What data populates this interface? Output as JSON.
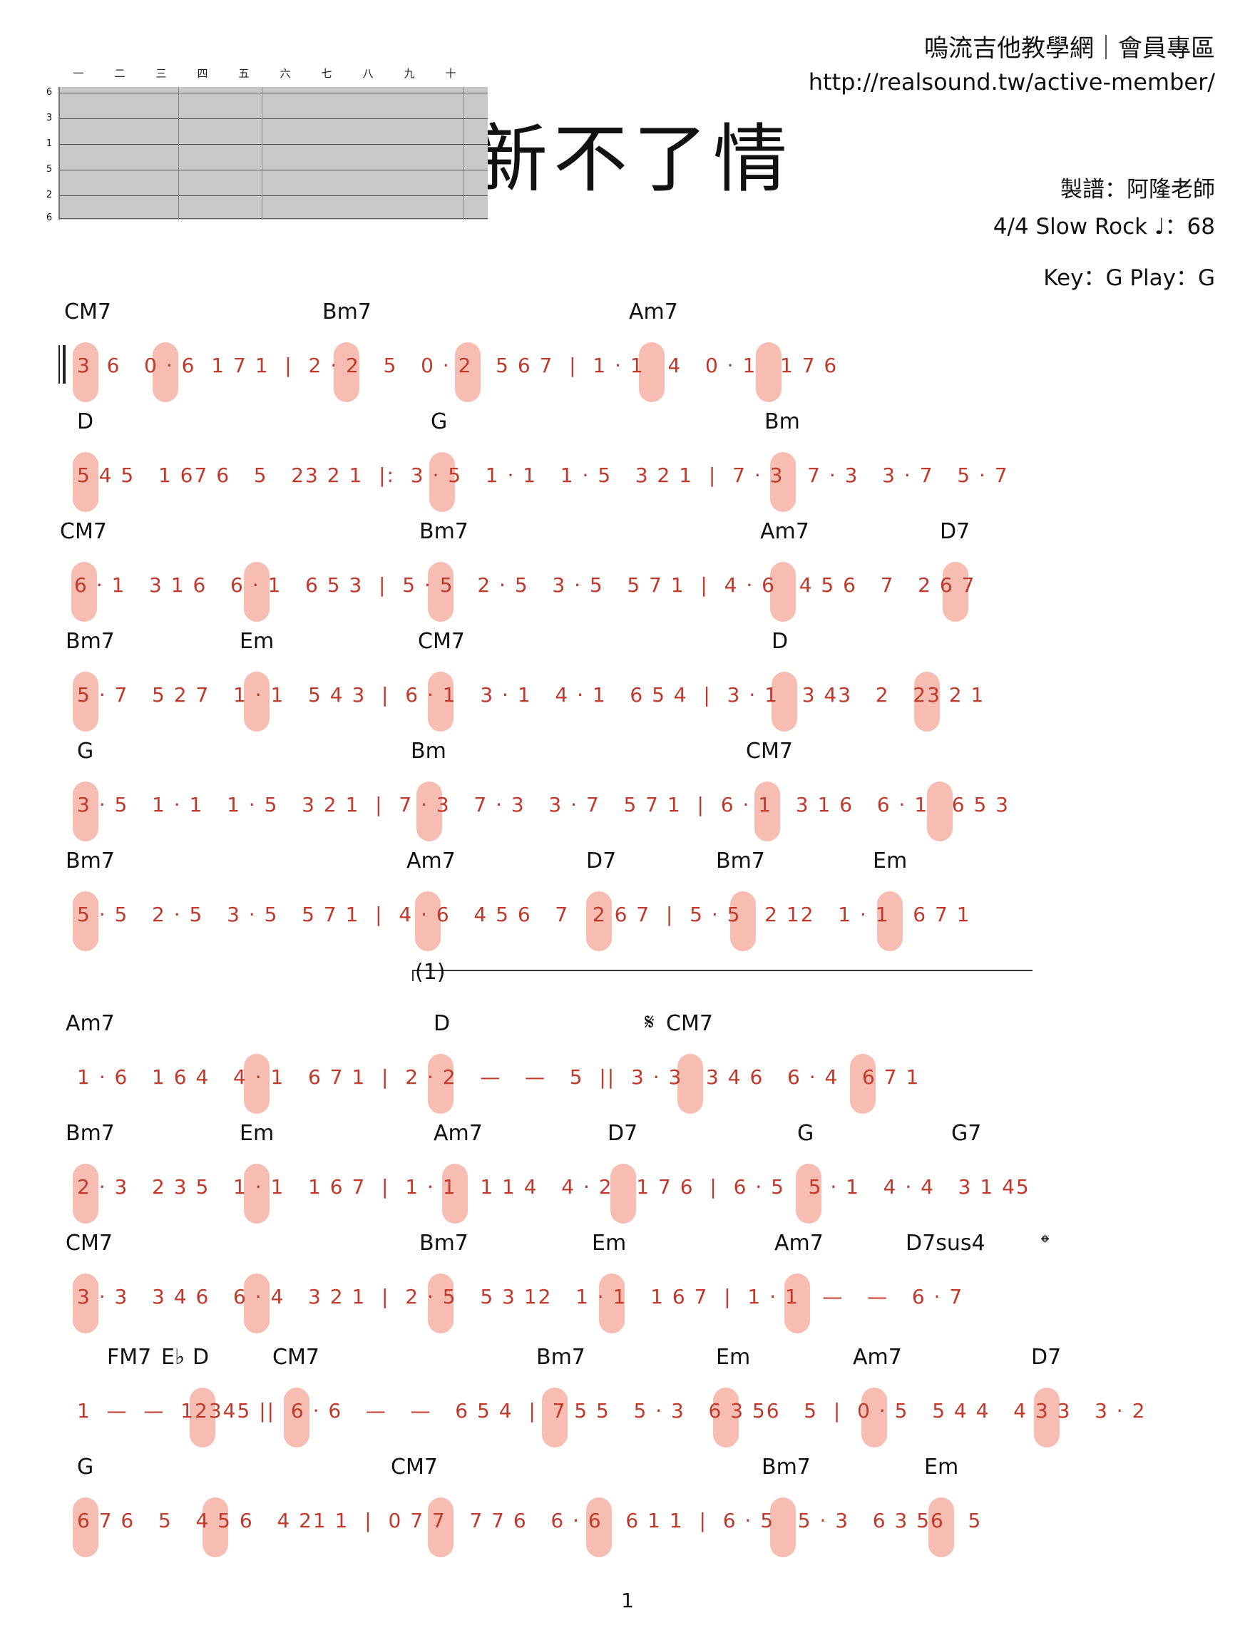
{
  "header": {
    "site_title": "嗚流吉他教學網｜會員專區",
    "site_url": "http://realsound.tw/active-member/",
    "song_title": "新不了情",
    "arranger": "製譜：阿隆老師",
    "meta": "4/4   Slow Rock   ♩：68",
    "key": "Key：G   Play：G"
  },
  "fretboard": {
    "frets": [
      "一",
      "二",
      "三",
      "四",
      "五",
      "六",
      "七",
      "八",
      "九",
      "十"
    ],
    "strings": [
      "6",
      "3",
      "1",
      "5",
      "2",
      "6"
    ]
  },
  "rows": [
    {
      "chords": [
        "CM7",
        "Bm7",
        "Am7"
      ],
      "notes": "3  6   0 · 6  1 7 1  |  2 · 2   5   0 · 2   5 6 7  |  1 · 1   4   0 · 1   1 7 6"
    },
    {
      "chords": [
        "D",
        "G",
        "Bm"
      ],
      "notes": "5 4 5   1 67 6   5   23 2 1  |:  3 · 5   1 · 1   1 · 5   3 2 1  |  7 · 3   7 · 3   3 · 7   5 · 7"
    },
    {
      "chords": [
        "CM7",
        "Bm7",
        "Am7",
        "D7"
      ],
      "notes": "6 · 1   3 1 6   6 · 1   6 5 3  |  5 · 5   2 · 5   3 · 5   5 7 1  |  4 · 6   4 5 6   7   2 6 7"
    },
    {
      "chords": [
        "Bm7",
        "Em",
        "CM7",
        "D"
      ],
      "notes": "5 · 7   5 2 7   1 · 1   5 4 3  |  6 · 1   3 · 1   4 · 1   6 5 4  |  3 · 1   3 43   2   23 2 1"
    },
    {
      "chords": [
        "G",
        "Bm",
        "CM7"
      ],
      "notes": "3 · 5   1 · 1   1 · 5   3 2 1  |  7 · 3   7 · 3   3 · 7   5 7 1  |  6 · 1   3 1 6   6 · 1   6 5 3"
    },
    {
      "chords": [
        "Bm7",
        "Am7",
        "D7",
        "Bm7",
        "Em"
      ],
      "notes": "5 · 5   2 · 5   3 · 5   5 7 1  |  4 · 6   4 5 6   7   2 6 7  |  5 · 5   2 12   1 · 1   6 7 1"
    },
    {
      "chords": [
        "Am7",
        "D",
        "CM7"
      ],
      "notes": "1 · 6   1 6 4   4 · 1   6 7 1  |  2 · 2   —   —   5  ||  3 · 3   3 4 6   6 · 4   6 7 1"
    },
    {
      "chords": [
        "Bm7",
        "Em",
        "Am7",
        "D7",
        "G",
        "G7"
      ],
      "notes": "2 · 3   2 3 5   1 · 1   1 6 7  |  1 · 1   1 1 4   4 · 2   1 7 6  |  6 · 5   5 · 1   4 · 4   3 1 45"
    },
    {
      "chords": [
        "CM7",
        "Bm7",
        "Em",
        "Am7",
        "D7sus4"
      ],
      "notes": "3 · 3   3 4 6   6 · 4   3 2 1  |  2 · 5   5 3 12   1 · 1   1 6 7  |  1 · 1   —   —   6 · 7"
    },
    {
      "chords": [
        "FM7",
        "E♭",
        "D",
        "CM7",
        "Bm7",
        "Em",
        "Am7",
        "D7"
      ],
      "notes": "1  —  —  12345 ||  6 · 6   —   —   6 5 4  |  7 5 5   5 · 3   6 3 56   5  |  0 · 5   5 4 4   4 3 3   3 · 2"
    },
    {
      "chords": [
        "G",
        "CM7",
        "Bm7",
        "Em"
      ],
      "notes": "6 7 6   5   4 5 6   4 21 1  |  0 7 7   7 7 6   6 · 6   6 1 1  |  6 · 5   5 · 3   6 3 56   5"
    }
  ],
  "volta": "1",
  "page_number": "1"
}
